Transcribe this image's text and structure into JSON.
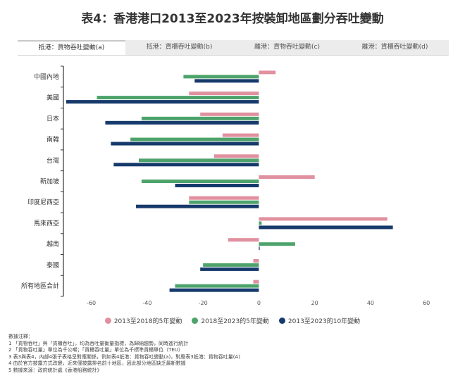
{
  "title": "表4：香港港口2013至2023年按裝卸地區劃分吞吐變動",
  "tabs": [
    {
      "label": "抵港：貨物吞吐變動(a)",
      "active": true
    },
    {
      "label": "抵港：貨櫃吞吐變動(b)",
      "active": false
    },
    {
      "label": "離港：貨物吞吐變動(c)",
      "active": false
    },
    {
      "label": "離港：貨櫃吞吐變動(d)",
      "active": false
    }
  ],
  "colors": {
    "s1": "#e0909e",
    "s2": "#4da36b",
    "s3": "#163a6b",
    "axis": "#333333"
  },
  "chart_data": {
    "type": "bar",
    "orientation": "horizontal",
    "categories": [
      "中國內地",
      "美國",
      "日本",
      "南韓",
      "台灣",
      "新加坡",
      "印度尼西亞",
      "馬來西亞",
      "越南",
      "泰國",
      "所有地區合計"
    ],
    "series": [
      {
        "name": "2013至2018的5年變動",
        "values": [
          6,
          -25,
          -21,
          -13,
          -16,
          20,
          -25,
          46,
          -11,
          -2,
          -2
        ]
      },
      {
        "name": "2018至2023的5年變動",
        "values": [
          -27,
          -58,
          -42,
          -46,
          -43,
          -42,
          -25,
          1,
          13,
          -20,
          -30
        ]
      },
      {
        "name": "2013至2023的10年變動",
        "values": [
          -23,
          -69,
          -55,
          -53,
          -52,
          -30,
          -44,
          48,
          0.3,
          -21,
          -32
        ]
      }
    ],
    "xlim": [
      -70,
      65
    ],
    "xticks": [
      -60,
      -40,
      -20,
      0,
      20,
      40,
      60
    ],
    "legend_position": "bottom"
  },
  "notes": [
    "數據注釋：",
    "1 「貨物吞吐」與「貨櫃吞吐」，均為吞吐量衡量指標，為歸納趨勢，同時進行統計",
    "2 「貨物吞吐量」單位為千公噸；「貨櫃吞吐量」單位為千標準貨櫃單位（TEU）",
    "3 表3與表4，內部4張子表格呈對應關係，例如表4抵港：貨物吞吐變動(a)，對應表3抵港：貨物吞吐量(A)",
    "4 由於官方披露方式改變，近來僅披露排名前十地區，因此部分地區缺乏最新數據",
    "5 數據來源：政府統計處《香港船務統計》"
  ]
}
